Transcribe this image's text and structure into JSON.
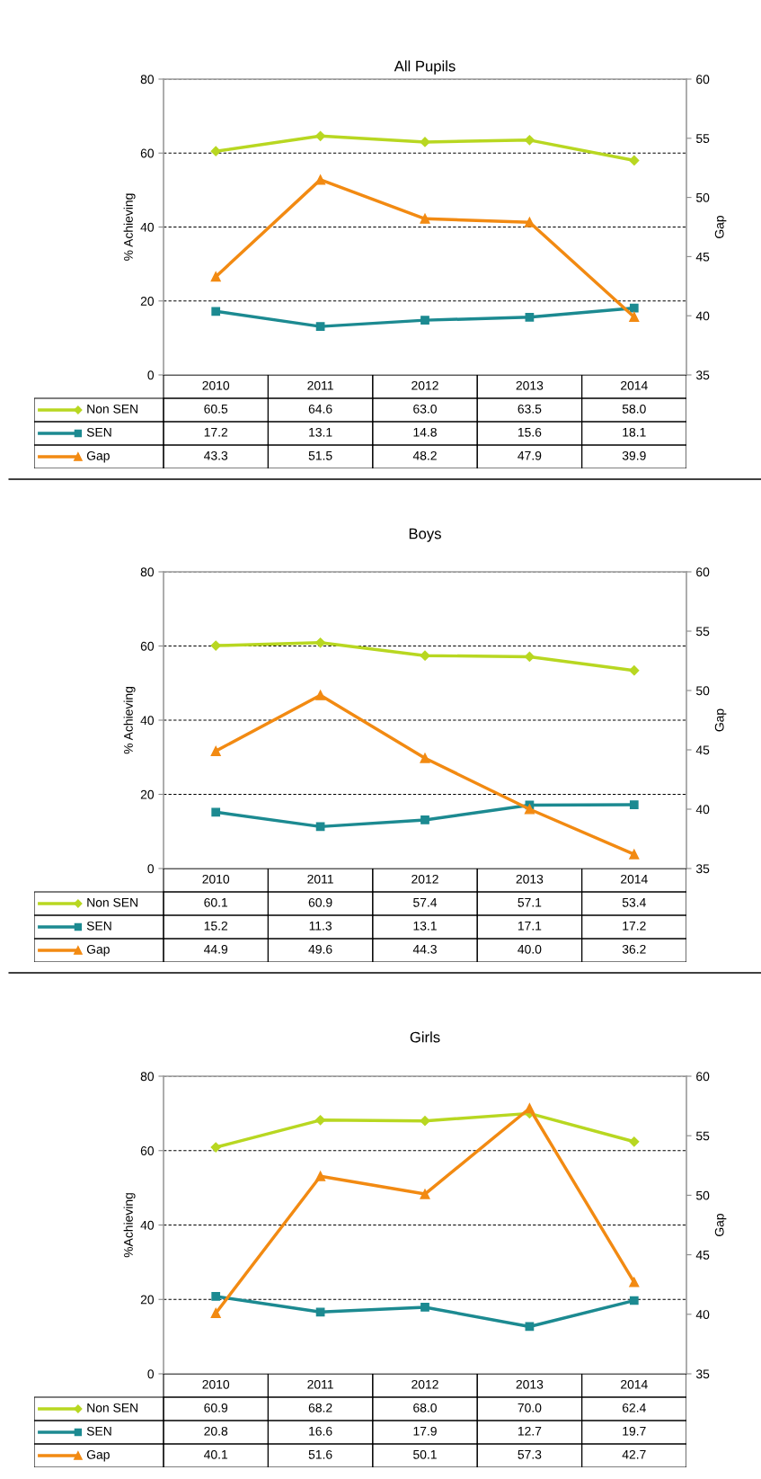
{
  "chart_data": [
    {
      "type": "line",
      "title": "All Pupils",
      "ylabel": "% Achieving",
      "y2label": "Gap",
      "categories": [
        "2010",
        "2011",
        "2012",
        "2013",
        "2014"
      ],
      "ylim": [
        0,
        80
      ],
      "yticks": [
        0,
        20,
        40,
        60,
        80
      ],
      "y2lim": [
        35,
        60
      ],
      "y2ticks": [
        35,
        40,
        45,
        50,
        55,
        60
      ],
      "grid": "y",
      "legend": "bottom",
      "line_style": "solid",
      "series": [
        {
          "name": "Non SEN",
          "color": "#b8d721",
          "marker": "diamond",
          "values": [
            60.5,
            64.6,
            63.0,
            63.5,
            58.0
          ],
          "value_labels": [
            "60.5",
            "64.6",
            "63.0",
            "63.5",
            "58.0"
          ]
        },
        {
          "name": "SEN",
          "color": "#1c8a91",
          "marker": "square",
          "values": [
            17.2,
            13.1,
            14.8,
            15.6,
            18.1
          ],
          "value_labels": [
            "17.2",
            "13.1",
            "14.8",
            "15.6",
            "18.1"
          ]
        },
        {
          "name": "Gap",
          "color": "#f28a12",
          "marker": "triangle",
          "axis": "y2",
          "values": [
            43.3,
            51.5,
            48.2,
            47.9,
            39.9
          ],
          "value_labels": [
            "43.3",
            "51.5",
            "48.2",
            "47.9",
            "39.9"
          ]
        }
      ]
    },
    {
      "type": "line",
      "title": "Boys",
      "ylabel": "% Achieving",
      "y2label": "Gap",
      "categories": [
        "2010",
        "2011",
        "2012",
        "2013",
        "2014"
      ],
      "ylim": [
        0,
        80
      ],
      "yticks": [
        0,
        20,
        40,
        60,
        80
      ],
      "y2lim": [
        35,
        60
      ],
      "y2ticks": [
        35,
        40,
        45,
        50,
        55,
        60
      ],
      "grid": "y",
      "legend": "bottom",
      "line_style": "solid",
      "series": [
        {
          "name": "Non SEN",
          "color": "#b8d721",
          "marker": "diamond",
          "values": [
            60.1,
            60.9,
            57.4,
            57.1,
            53.4
          ],
          "value_labels": [
            "60.1",
            "60.9",
            "57.4",
            "57.1",
            "53.4"
          ]
        },
        {
          "name": "SEN",
          "color": "#1c8a91",
          "marker": "square",
          "values": [
            15.2,
            11.3,
            13.1,
            17.1,
            17.2
          ],
          "value_labels": [
            "15.2",
            "11.3",
            "13.1",
            "17.1",
            "17.2"
          ]
        },
        {
          "name": "Gap",
          "color": "#f28a12",
          "marker": "triangle",
          "axis": "y2",
          "values": [
            44.9,
            49.6,
            44.3,
            40.0,
            36.2
          ],
          "value_labels": [
            "44.9",
            "49.6",
            "44.3",
            "40.0",
            "36.2"
          ]
        }
      ]
    },
    {
      "type": "line",
      "title": "Girls",
      "ylabel": "%Achieving",
      "y2label": "Gap",
      "categories": [
        "2010",
        "2011",
        "2012",
        "2013",
        "2014"
      ],
      "ylim": [
        0,
        80
      ],
      "yticks": [
        0,
        20,
        40,
        60,
        80
      ],
      "y2lim": [
        35,
        60
      ],
      "y2ticks": [
        35,
        40,
        45,
        50,
        55,
        60
      ],
      "grid": "y",
      "legend": "bottom",
      "line_style": "solid",
      "series": [
        {
          "name": "Non SEN",
          "color": "#b8d721",
          "marker": "diamond",
          "values": [
            60.9,
            68.2,
            68.0,
            70.0,
            62.4
          ],
          "value_labels": [
            "60.9",
            "68.2",
            "68.0",
            "70.0",
            "62.4"
          ]
        },
        {
          "name": "SEN",
          "color": "#1c8a91",
          "marker": "square",
          "values": [
            20.8,
            16.6,
            17.9,
            12.7,
            19.7
          ],
          "value_labels": [
            "20.8",
            "16.6",
            "17.9",
            "12.7",
            "19.7"
          ]
        },
        {
          "name": "Gap",
          "color": "#f28a12",
          "marker": "triangle",
          "axis": "y2",
          "values": [
            40.1,
            51.6,
            50.1,
            57.3,
            42.7
          ],
          "value_labels": [
            "40.1",
            "51.6",
            "50.1",
            "57.3",
            "42.7"
          ]
        }
      ]
    }
  ]
}
